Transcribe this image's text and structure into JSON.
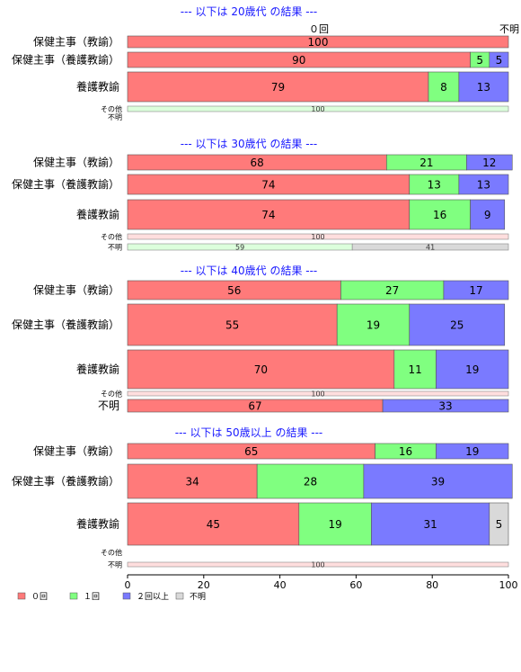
{
  "chart_data": {
    "type": "bar",
    "orientation": "horizontal",
    "stacked": true,
    "xlim": [
      0,
      100
    ],
    "xticks": [
      0,
      20,
      40,
      60,
      80,
      100
    ],
    "top_note": "０回",
    "top_note_right": "不明",
    "legend_position": "bottom-left",
    "colors": {
      "０回": "#ff7a7a",
      "１回": "#80ff80",
      "２回以上": "#7a7aff",
      "不明": "#d9d9d9"
    },
    "series_names": [
      "０回",
      "１回",
      "２回以上",
      "不明"
    ],
    "groups": [
      {
        "title": "--- 以下は 20歳代 の結果 ---",
        "rows": [
          {
            "label": "保健主事（教諭）",
            "values": [
              100,
              0,
              0,
              0
            ]
          },
          {
            "label": "保健主事（養護教諭）",
            "values": [
              90,
              5,
              5,
              0
            ]
          },
          {
            "label": "養護教諭",
            "values": [
              79,
              8,
              13,
              0
            ]
          },
          {
            "label": "その他",
            "values": [
              0,
              100,
              0,
              0
            ]
          },
          {
            "label": "不明",
            "values": []
          }
        ]
      },
      {
        "title": "--- 以下は 30歳代 の結果 ---",
        "rows": [
          {
            "label": "保健主事（教諭）",
            "values": [
              68,
              21,
              12,
              0
            ]
          },
          {
            "label": "保健主事（養護教諭）",
            "values": [
              74,
              13,
              13,
              0
            ]
          },
          {
            "label": "養護教諭",
            "values": [
              74,
              16,
              9,
              0
            ]
          },
          {
            "label": "その他",
            "values": [
              100,
              0,
              0,
              0
            ]
          },
          {
            "label": "不明",
            "values": [
              0,
              59,
              0,
              41
            ]
          }
        ]
      },
      {
        "title": "--- 以下は 40歳代 の結果 ---",
        "rows": [
          {
            "label": "保健主事（教諭）",
            "values": [
              56,
              27,
              17,
              0
            ]
          },
          {
            "label": "保健主事（養護教諭）",
            "values": [
              55,
              19,
              25,
              0
            ]
          },
          {
            "label": "養護教諭",
            "values": [
              70,
              11,
              19,
              0
            ]
          },
          {
            "label": "その他",
            "values": [
              100,
              0,
              0,
              0
            ]
          },
          {
            "label": "不明",
            "values": [
              67,
              0,
              33,
              0
            ]
          }
        ]
      },
      {
        "title": "--- 以下は 50歳以上 の結果 ---",
        "rows": [
          {
            "label": "保健主事（教諭）",
            "values": [
              65,
              16,
              19,
              0
            ]
          },
          {
            "label": "保健主事（養護教諭）",
            "values": [
              34,
              28,
              39,
              0
            ]
          },
          {
            "label": "養護教諭",
            "values": [
              45,
              19,
              31,
              5
            ]
          },
          {
            "label": "その他",
            "values": []
          },
          {
            "label": "不明",
            "values": [
              100,
              0,
              0,
              0
            ]
          }
        ]
      }
    ]
  }
}
